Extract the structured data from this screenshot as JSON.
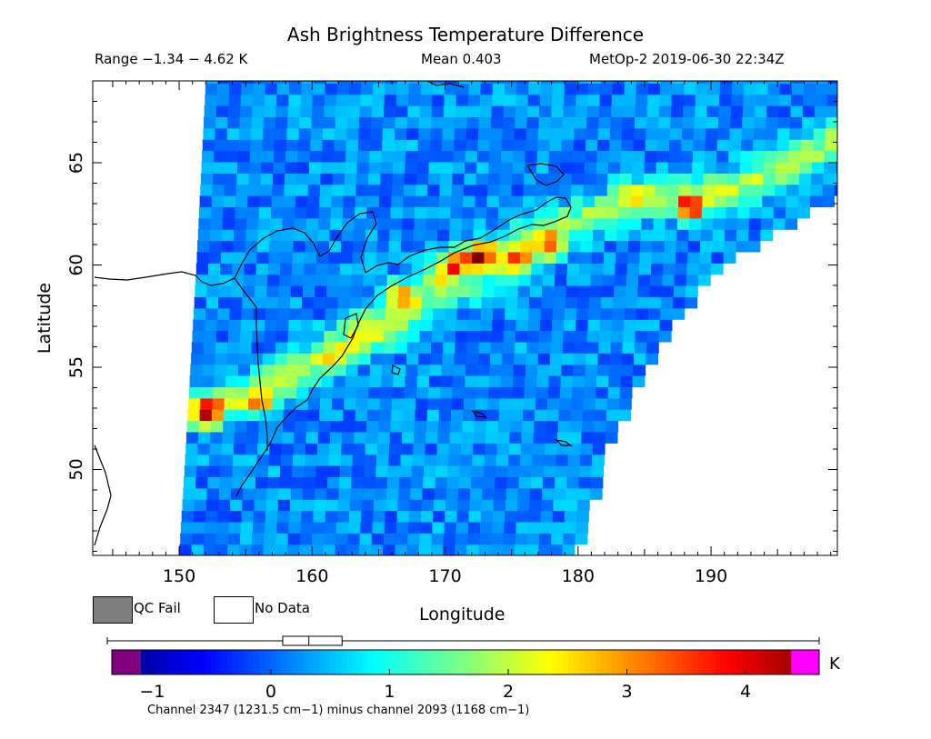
{
  "header": {
    "title": "Ash Brightness Temperature Difference",
    "range_text": "Range −1.34 − 4.62 K",
    "mean_text": "Mean 0.403",
    "satellite_time": "MetOp-2 2019-06-30 22:34Z"
  },
  "legend": {
    "qc_fail_label": "QC Fail",
    "no_data_label": "No Data",
    "qc_fail_color": "#7f7f7f",
    "no_data_color": "#ffffff"
  },
  "colorbar": {
    "min": -1.34,
    "max": 4.62,
    "mean": 0.403,
    "ticks": [
      -1,
      0,
      1,
      2,
      3,
      4
    ],
    "tick_labels": [
      "−1",
      "0",
      "1",
      "2",
      "3",
      "4"
    ],
    "unit": "K",
    "under_color": "#800080",
    "over_color": "#ff00ff",
    "boxplot": {
      "q1": 0.1,
      "median": 0.32,
      "q3": 0.6
    },
    "caption": "Channel 2347 (1231.5 cm−1) minus channel 2093 (1168 cm−1)"
  },
  "chart_data": {
    "type": "heatmap",
    "title": "Ash Brightness Temperature Difference",
    "xlabel": "Longitude",
    "ylabel": "Latitude",
    "xlim": [
      143.5,
      199.5
    ],
    "ylim": [
      45.8,
      69.0
    ],
    "xticks": [
      150,
      160,
      170,
      180,
      190
    ],
    "yticks": [
      50,
      55,
      60,
      65
    ],
    "value_range": [
      -1.34,
      4.62
    ],
    "value_unit": "K",
    "mean": 0.403,
    "background_value": 0.2,
    "swath": {
      "left_edge": [
        [
          152,
          69.0
        ],
        [
          151.3,
          60
        ],
        [
          150.4,
          50
        ],
        [
          150.0,
          45.8
        ]
      ],
      "right_edge": [
        [
          199.5,
          63.5
        ],
        [
          195,
          61.8
        ],
        [
          190,
          59.6
        ],
        [
          186,
          56.2
        ],
        [
          182,
          51.4
        ],
        [
          179.6,
          45.8
        ]
      ]
    },
    "ash_plume": {
      "path": [
        [
          151.6,
          53.0
        ],
        [
          155,
          53.6
        ],
        [
          158,
          54.5
        ],
        [
          161,
          55.6
        ],
        [
          164,
          56.9
        ],
        [
          167,
          58.2
        ],
        [
          170,
          59.5
        ],
        [
          173,
          60.4
        ],
        [
          176,
          61.2
        ],
        [
          179,
          61.9
        ],
        [
          182,
          62.6
        ],
        [
          185,
          63.3
        ],
        [
          188,
          63.5
        ],
        [
          191,
          63.6
        ],
        [
          195,
          64.6
        ],
        [
          199,
          66.0
        ]
      ],
      "peaks": [
        {
          "lon": 152.2,
          "lat": 52.8,
          "value": 4.6
        },
        {
          "lon": 156.0,
          "lat": 53.3,
          "value": 3.0
        },
        {
          "lon": 166.5,
          "lat": 58.6,
          "value": 3.0
        },
        {
          "lon": 170.5,
          "lat": 60.0,
          "value": 3.4
        },
        {
          "lon": 172.5,
          "lat": 60.5,
          "value": 4.3
        },
        {
          "lon": 175.5,
          "lat": 60.2,
          "value": 3.3
        },
        {
          "lon": 178.0,
          "lat": 61.0,
          "value": 3.0
        },
        {
          "lon": 184.0,
          "lat": 63.4,
          "value": 2.2
        },
        {
          "lon": 188.5,
          "lat": 62.8,
          "value": 4.4
        }
      ],
      "secondary_band": [
        [
          162,
          55.4
        ],
        [
          165,
          56.3
        ],
        [
          168,
          57.4
        ],
        [
          171,
          58.5
        ],
        [
          174,
          59.4
        ],
        [
          177,
          60.3
        ]
      ]
    }
  }
}
